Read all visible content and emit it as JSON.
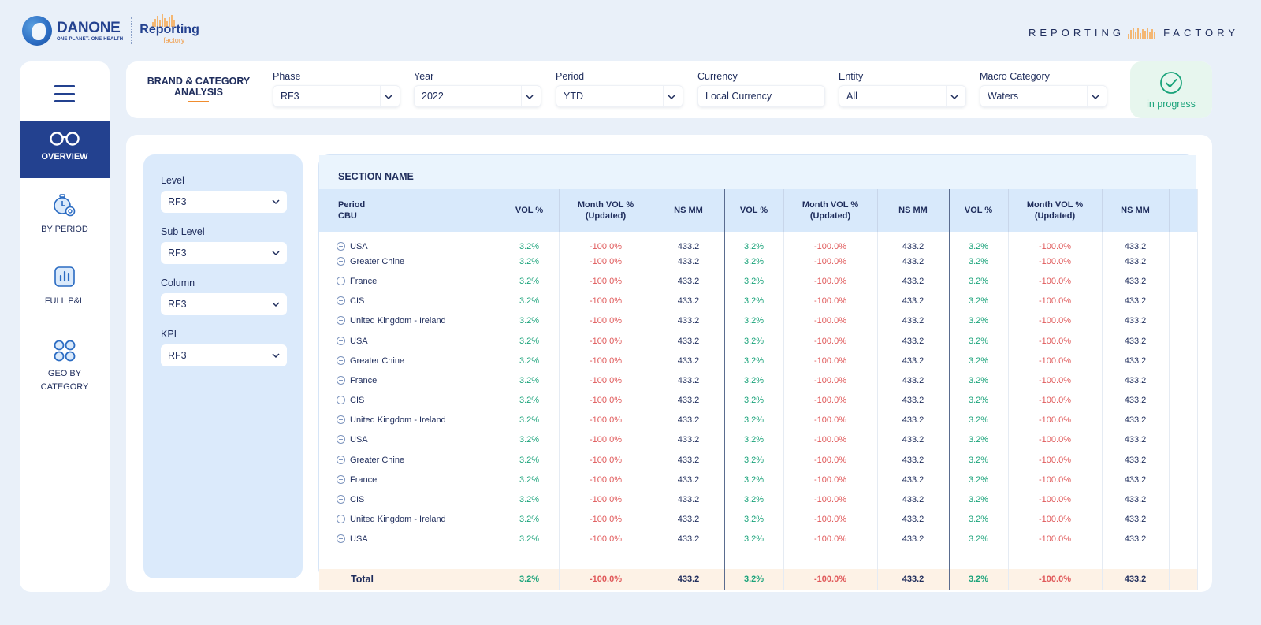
{
  "brand": {
    "danone_word": "DANONE",
    "danone_tag": "ONE PLANET. ONE HEALTH",
    "app_name": "Reporting",
    "app_sub": "factory",
    "right_word_1": "REPORTING",
    "right_word_2": "FACTORY",
    "accent_color": "#f4b773",
    "navy_color": "#23418f"
  },
  "sidebar": {
    "menu_icon": "hamburger-icon",
    "items": [
      {
        "label": "OVERVIEW",
        "icon": "glasses-icon",
        "active": true
      },
      {
        "label": "BY PERIOD",
        "icon": "stopwatch-gear-icon"
      },
      {
        "label": "FULL P&L",
        "icon": "bar-chart-icon"
      },
      {
        "label": "GEO BY CATEGORY",
        "icon": "four-circles-icon"
      }
    ]
  },
  "header": {
    "title_line1": "BRAND & CATEGORY",
    "title_line2": "ANALYSIS",
    "filters": [
      {
        "label": "Phase",
        "value": "RF3"
      },
      {
        "label": "Year",
        "value": "2022"
      },
      {
        "label": "Period",
        "value": "YTD"
      },
      {
        "label": "Currency",
        "value": "Local Currency"
      },
      {
        "label": "Entity",
        "value": "All"
      },
      {
        "label": "Macro Category",
        "value": "Waters"
      }
    ],
    "status": {
      "text": "in progress",
      "icon": "check-circle-icon",
      "color": "#1aa37a"
    }
  },
  "side_filters": [
    {
      "label": "Level",
      "value": "RF3"
    },
    {
      "label": "Sub Level",
      "value": "RF3"
    },
    {
      "label": "Column",
      "value": "RF3"
    },
    {
      "label": "KPI",
      "value": "RF3"
    }
  ],
  "table": {
    "section_name": "SECTION NAME",
    "first_col_line1": "Period",
    "first_col_line2": "CBU",
    "groups": [
      {
        "vol": "VOL %",
        "month_line1": "Month VOL %",
        "month_line2": "(Updated)",
        "ns": "NS MM"
      },
      {
        "vol": "VOL %",
        "month_line1": "Month VOL %",
        "month_line2": "(Updated)",
        "ns": "NS MM"
      },
      {
        "vol": "VOL %",
        "month_line1": "Month VOL %",
        "month_line2": "(Updated)",
        "ns": "NS MM"
      }
    ],
    "rows": [
      {
        "cbu": "USA",
        "vol": "3.2%",
        "month": "-100.0%",
        "ns": "433.2"
      },
      {
        "cbu": "Greater Chine",
        "vol": "3.2%",
        "month": "-100.0%",
        "ns": "433.2"
      },
      {
        "cbu": "France",
        "vol": "3.2%",
        "month": "-100.0%",
        "ns": "433.2"
      },
      {
        "cbu": "CIS",
        "vol": "3.2%",
        "month": "-100.0%",
        "ns": "433.2"
      },
      {
        "cbu": "United Kingdom - Ireland",
        "vol": "3.2%",
        "month": "-100.0%",
        "ns": "433.2"
      },
      {
        "cbu": "USA",
        "vol": "3.2%",
        "month": "-100.0%",
        "ns": "433.2"
      },
      {
        "cbu": "Greater Chine",
        "vol": "3.2%",
        "month": "-100.0%",
        "ns": "433.2"
      },
      {
        "cbu": "France",
        "vol": "3.2%",
        "month": "-100.0%",
        "ns": "433.2"
      },
      {
        "cbu": "CIS",
        "vol": "3.2%",
        "month": "-100.0%",
        "ns": "433.2"
      },
      {
        "cbu": "United Kingdom - Ireland",
        "vol": "3.2%",
        "month": "-100.0%",
        "ns": "433.2"
      },
      {
        "cbu": "USA",
        "vol": "3.2%",
        "month": "-100.0%",
        "ns": "433.2"
      },
      {
        "cbu": "Greater Chine",
        "vol": "3.2%",
        "month": "-100.0%",
        "ns": "433.2"
      },
      {
        "cbu": "France",
        "vol": "3.2%",
        "month": "-100.0%",
        "ns": "433.2"
      },
      {
        "cbu": "CIS",
        "vol": "3.2%",
        "month": "-100.0%",
        "ns": "433.2"
      },
      {
        "cbu": "United Kingdom - Ireland",
        "vol": "3.2%",
        "month": "-100.0%",
        "ns": "433.2"
      },
      {
        "cbu": "USA",
        "vol": "3.2%",
        "month": "-100.0%",
        "ns": "433.2"
      }
    ],
    "total": {
      "label": "Total",
      "vol": "3.2%",
      "month": "-100.0%",
      "ns": "433.2"
    },
    "colors": {
      "positive": "#1aa37a",
      "negative": "#e0595a",
      "total_bg": "#fdf2e6",
      "header_bg": "#d8e9fb"
    }
  }
}
